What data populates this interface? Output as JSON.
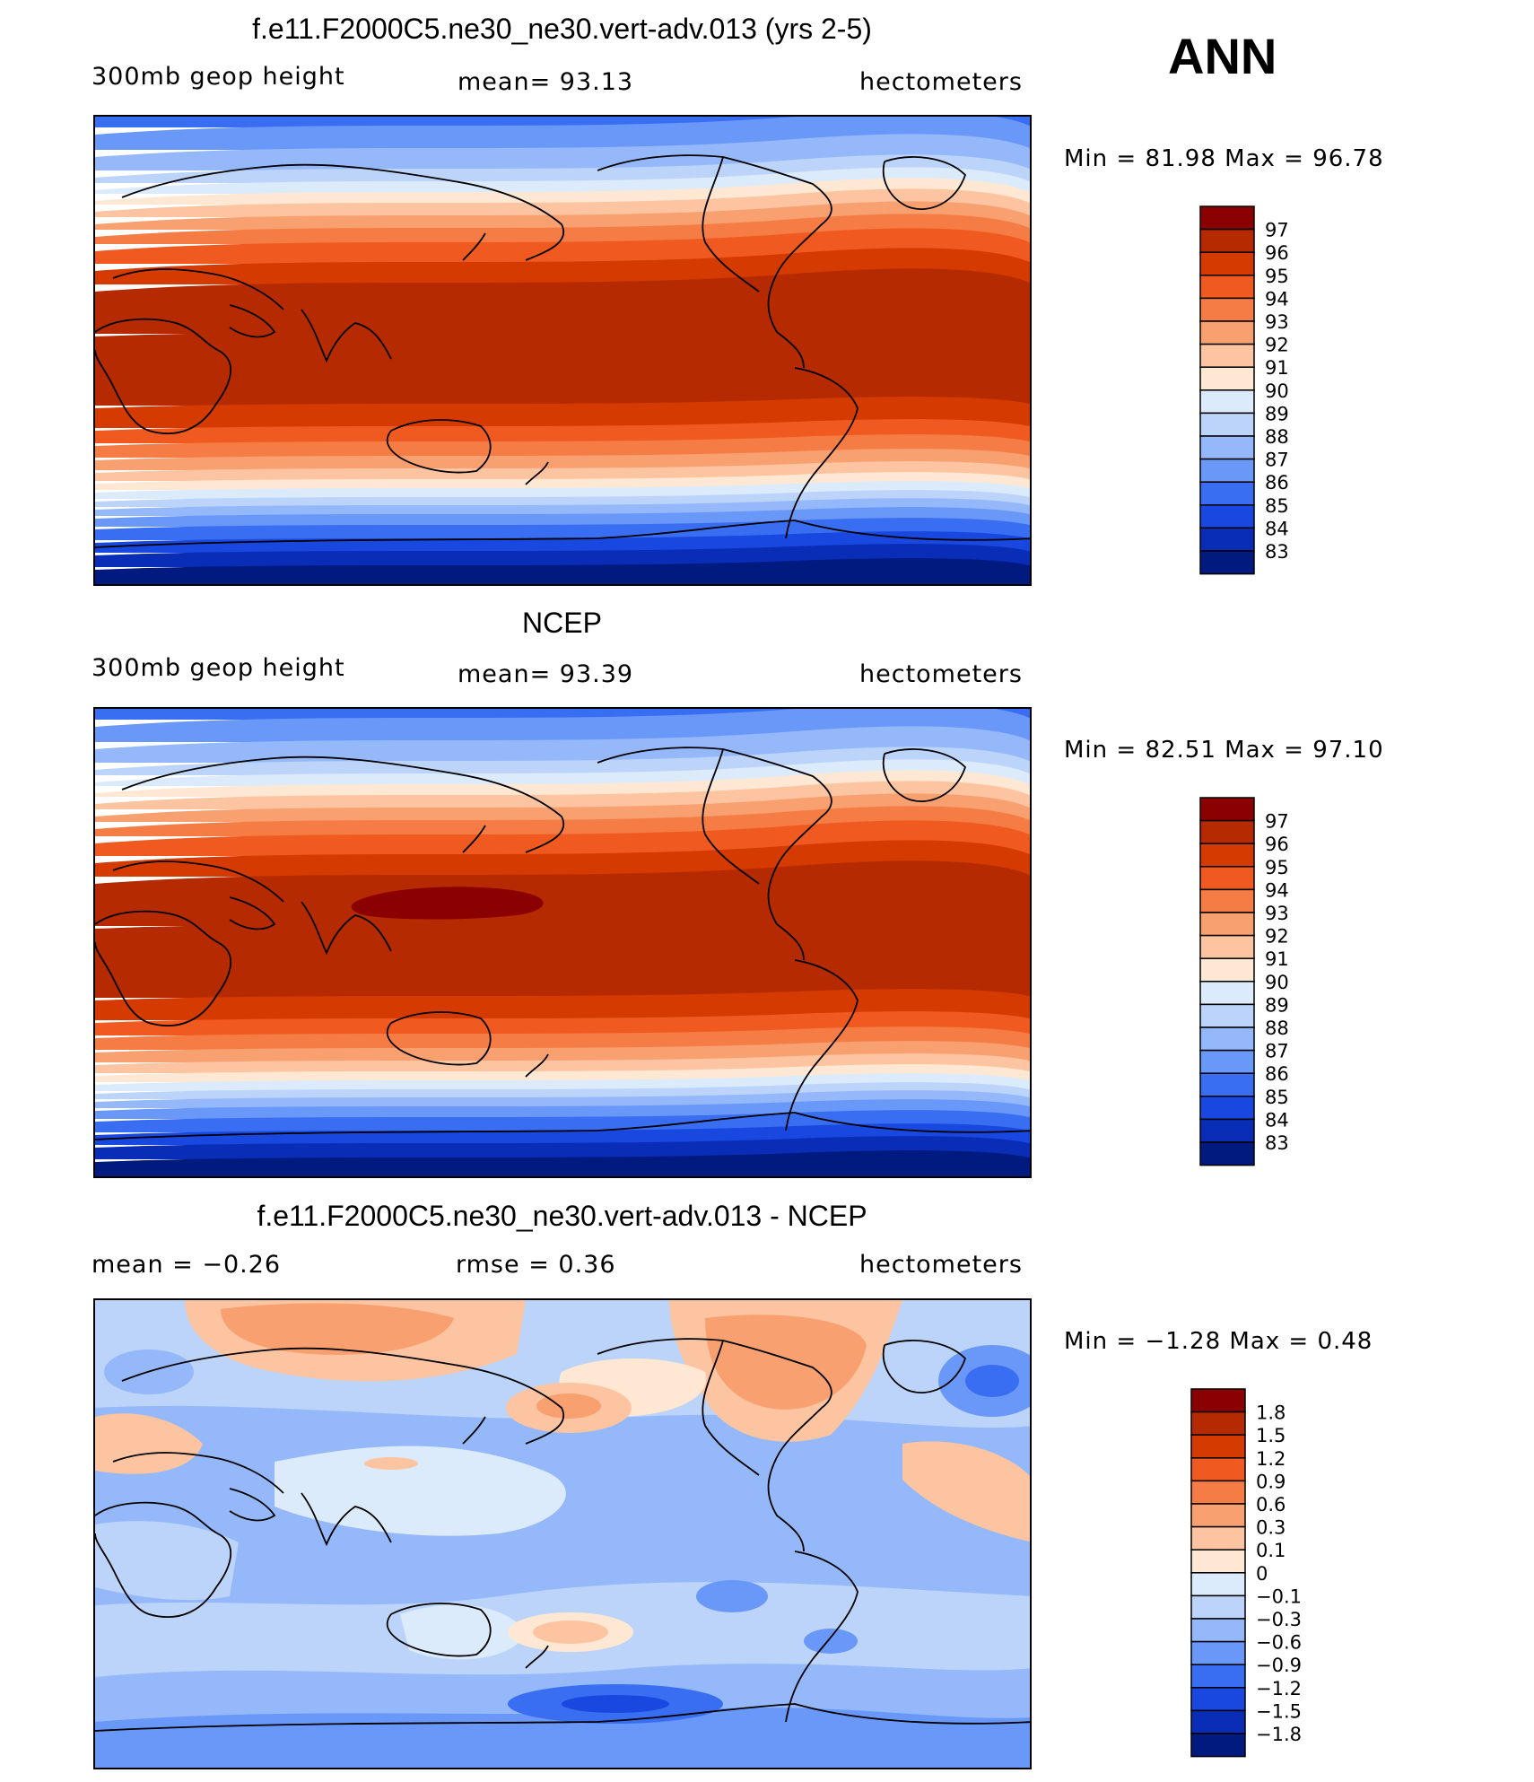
{
  "season": "ANN",
  "panels": [
    {
      "id": "model",
      "title": "f.e11.F2000C5.ne30_ne30.vert-adv.013 (yrs 2-5)",
      "left": "300mb  geop  height",
      "mid": "mean=   93.13",
      "right": "hectometers",
      "minmax": "Min  =    81.98  Max  =     96.78",
      "type": "field"
    },
    {
      "id": "obs",
      "title": "NCEP",
      "left": "300mb  geop  height",
      "mid": "mean=   93.39",
      "right": "hectometers",
      "minmax": "Min  =    82.51  Max  =     97.10",
      "type": "field"
    },
    {
      "id": "diff",
      "title": "f.e11.F2000C5.ne30_ne30.vert-adv.013 - NCEP",
      "left": "mean  =    −0.26",
      "mid": "rmse  =     0.36",
      "right": "hectometers",
      "minmax": "Min  =   −1.28  Max  =      0.48",
      "type": "diff"
    }
  ],
  "colorbars": {
    "field": {
      "labels": [
        "97",
        "96",
        "95",
        "94",
        "93",
        "92",
        "91",
        "90",
        "89",
        "88",
        "87",
        "86",
        "85",
        "84",
        "83"
      ],
      "colors": [
        "#8b0000",
        "#b52a00",
        "#d53a00",
        "#f05a20",
        "#f57d45",
        "#f9a070",
        "#fcc4a0",
        "#fee8d3",
        "#dcebfb",
        "#bcd4fa",
        "#94b8fa",
        "#6a98f8",
        "#3a6ef2",
        "#1848e0",
        "#0a2db8",
        "#001a80"
      ]
    },
    "diff": {
      "labels": [
        "1.8",
        "1.5",
        "1.2",
        "0.9",
        "0.6",
        "0.3",
        "0.1",
        "0",
        "−0.1",
        "−0.3",
        "−0.6",
        "−0.9",
        "−1.2",
        "−1.5",
        "−1.8"
      ],
      "colors": [
        "#8b0000",
        "#b52a00",
        "#d53a00",
        "#f05a20",
        "#f57d45",
        "#f9a070",
        "#fcc4a0",
        "#fee8d3",
        "#dcebfb",
        "#bcd4fa",
        "#94b8fa",
        "#6a98f8",
        "#3a6ef2",
        "#1848e0",
        "#0a2db8",
        "#001a80"
      ]
    }
  }
}
